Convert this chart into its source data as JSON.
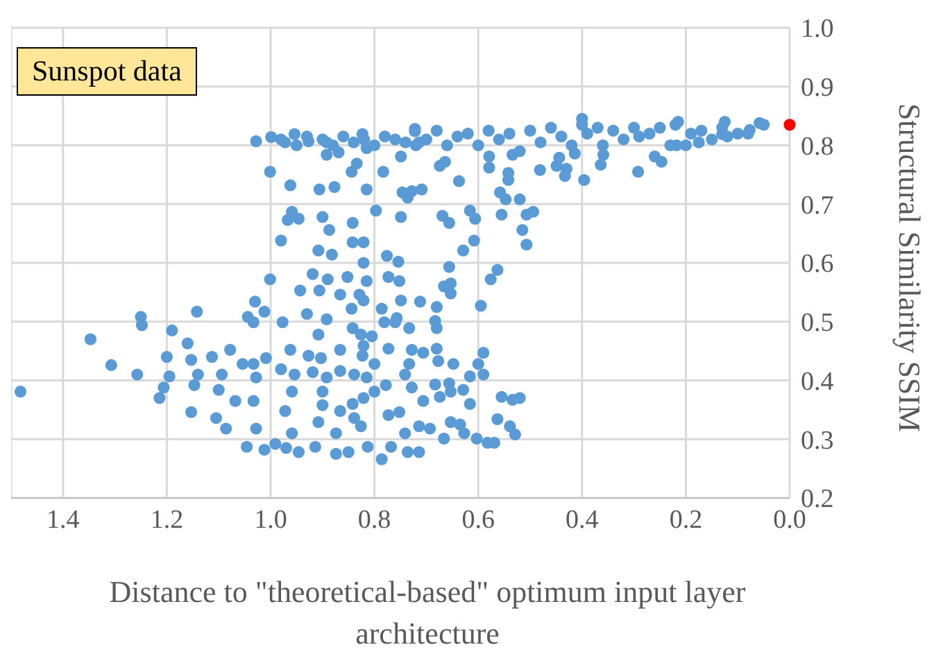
{
  "chart_data": {
    "type": "scatter",
    "xlabel": "Distance to \"theoretical-based\" optimum input layer architecture",
    "ylabel": "Structural Similarity SSIM",
    "annotations": [
      "Sunspot data"
    ],
    "xlim": [
      1.5,
      0
    ],
    "xticks": [
      1.4,
      1.2,
      {
        "value": 1,
        "label": "1.0"
      },
      0.8,
      0.6,
      0.4,
      0.2,
      {
        "value": 0,
        "label": "0.0"
      }
    ],
    "ylim": [
      0.2,
      1
    ],
    "yticks": [
      0.2,
      0.3,
      0.4,
      0.5,
      0.6,
      0.7,
      0.8,
      0.9,
      {
        "value": 1,
        "label": "1.0"
      }
    ],
    "grid": true,
    "marker": "circle",
    "series": [
      {
        "color": "#5b9bd5",
        "x": [
          1.482,
          1.347,
          1.307,
          1.257,
          1.25,
          1.248,
          1.2,
          1.214,
          1.19,
          1.195,
          1.206,
          1.142,
          1.16,
          1.153,
          1.14,
          1.147,
          1.153,
          1.105,
          1.086,
          1.113,
          1.078,
          1.094,
          1.1,
          1.068,
          1.054,
          1.046,
          1.044,
          1.033,
          1.03,
          1.012,
          1.033,
          1.028,
          1.033,
          1.028,
          1.012,
          1.009,
          1.001,
          1.001,
          1.028,
          0.999,
          0.98,
          0.977,
          0.962,
          0.98,
          0.972,
          0.97,
          0.991,
          0.959,
          0.954,
          0.946,
          0.959,
          0.962,
          0.967,
          0.959,
          0.946,
          0.972,
          0.954,
          0.927,
          0.943,
          0.93,
          0.927,
          0.919,
          0.908,
          0.906,
          0.919,
          0.908,
          0.9,
          0.906,
          0.877,
          0.887,
          0.882,
          0.89,
          0.892,
          0.903,
          0.892,
          0.9,
          0.9,
          0.908,
          0.914,
          0.892,
          0.892,
          0.869,
          0.866,
          0.866,
          0.866,
          0.866,
          0.874,
          0.874,
          0.852,
          0.844,
          0.842,
          0.842,
          0.842,
          0.844,
          0.834,
          0.839,
          0.842,
          0.839,
          0.85,
          0.821,
          0.821,
          0.815,
          0.829,
          0.821,
          0.826,
          0.821,
          0.823,
          0.815,
          0.821,
          0.826,
          0.813,
          0.815,
          0.815,
          0.823,
          0.805,
          0.8,
          0.8,
          0.797,
          0.786,
          0.783,
          0.776,
          0.773,
          0.781,
          0.773,
          0.778,
          0.773,
          0.786,
          0.768,
          0.754,
          0.752,
          0.749,
          0.757,
          0.76,
          0.749,
          0.746,
          0.736,
          0.749,
          0.752,
          0.741,
          0.733,
          0.728,
          0.733,
          0.728,
          0.741,
          0.736,
          0.722,
          0.714,
          0.728,
          0.709,
          0.669,
          0.656,
          0.712,
          0.68,
          0.683,
          0.68,
          0.706,
          0.68,
          0.677,
          0.648,
          0.616,
          0.6,
          0.59,
          0.59,
          0.656,
          0.683,
          0.653,
          0.629,
          0.706,
          0.674,
          0.616,
          0.555,
          0.534,
          0.52,
          0.714,
          0.693,
          0.653,
          0.635,
          0.666,
          0.627,
          0.603,
          0.582,
          0.569,
          0.563,
          0.539,
          0.529,
          0.714,
          0.666,
          0.653,
          0.653,
          0.595,
          0.656,
          0.576,
          0.563,
          0.629,
          0.608,
          0.616,
          0.606,
          0.555,
          0.547,
          0.558,
          0.542,
          0.542,
          0.52,
          0.507,
          0.494,
          0.515,
          0.507,
          0.637,
          0.674,
          0.664,
          0.579,
          0.481,
          0.449,
          0.43,
          0.433,
          0.396,
          0.444,
          0.364,
          0.359,
          0.292,
          0.26,
          0.247,
          0.414,
          0.534,
          0.579,
          0.7,
          0.68,
          0.66,
          0.64,
          0.62,
          0.6,
          0.58,
          0.56,
          0.54,
          0.52,
          0.5,
          0.48,
          0.46,
          0.44,
          0.42,
          0.4,
          0.39,
          0.37,
          0.36,
          0.34,
          0.32,
          0.3,
          0.29,
          0.27,
          0.25,
          0.23,
          0.22,
          0.2,
          0.19,
          0.17,
          0.15,
          0.13,
          0.12,
          0.1,
          0.08,
          0.05,
          0.125,
          0.058,
          0.215,
          0.13,
          0.077,
          0.175,
          0.218,
          0.4,
          0.722,
          0.98,
          0.95,
          0.93,
          0.9,
          0.88,
          0.86,
          0.84,
          0.82,
          0.8,
          0.78,
          0.76,
          0.74,
          0.72
        ],
        "values": [
          0.381,
          0.47,
          0.426,
          0.41,
          0.508,
          0.494,
          0.44,
          0.37,
          0.485,
          0.407,
          0.388,
          0.517,
          0.463,
          0.435,
          0.41,
          0.392,
          0.346,
          0.336,
          0.318,
          0.44,
          0.452,
          0.41,
          0.384,
          0.365,
          0.428,
          0.287,
          0.508,
          0.499,
          0.534,
          0.517,
          0.428,
          0.405,
          0.365,
          0.318,
          0.282,
          0.438,
          0.572,
          0.755,
          0.807,
          0.814,
          0.638,
          0.499,
          0.452,
          0.419,
          0.348,
          0.285,
          0.292,
          0.381,
          0.41,
          0.278,
          0.31,
          0.732,
          0.673,
          0.687,
          0.675,
          0.805,
          0.819,
          0.807,
          0.553,
          0.513,
          0.442,
          0.414,
          0.478,
          0.553,
          0.581,
          0.621,
          0.678,
          0.725,
          0.729,
          0.656,
          0.614,
          0.572,
          0.504,
          0.438,
          0.405,
          0.381,
          0.358,
          0.329,
          0.287,
          0.805,
          0.784,
          0.788,
          0.546,
          0.452,
          0.416,
          0.348,
          0.31,
          0.275,
          0.576,
          0.522,
          0.489,
          0.635,
          0.668,
          0.755,
          0.769,
          0.41,
          0.36,
          0.336,
          0.278,
          0.635,
          0.6,
          0.569,
          0.546,
          0.536,
          0.478,
          0.459,
          0.442,
          0.405,
          0.37,
          0.322,
          0.287,
          0.725,
          0.795,
          0.819,
          0.475,
          0.428,
          0.381,
          0.689,
          0.522,
          0.755,
          0.612,
          0.576,
          0.499,
          0.454,
          0.392,
          0.341,
          0.266,
          0.287,
          0.602,
          0.569,
          0.536,
          0.506,
          0.499,
          0.678,
          0.72,
          0.711,
          0.781,
          0.346,
          0.41,
          0.489,
          0.452,
          0.428,
          0.388,
          0.31,
          0.278,
          0.824,
          0.805,
          0.722,
          0.725,
          0.68,
          0.668,
          0.534,
          0.525,
          0.501,
          0.489,
          0.447,
          0.454,
          0.433,
          0.428,
          0.407,
          0.428,
          0.447,
          0.41,
          0.395,
          0.393,
          0.381,
          0.384,
          0.365,
          0.372,
          0.36,
          0.372,
          0.367,
          0.37,
          0.322,
          0.318,
          0.329,
          0.325,
          0.301,
          0.31,
          0.301,
          0.294,
          0.294,
          0.334,
          0.322,
          0.308,
          0.278,
          0.56,
          0.565,
          0.548,
          0.527,
          0.593,
          0.572,
          0.588,
          0.621,
          0.638,
          0.689,
          0.675,
          0.682,
          0.708,
          0.72,
          0.741,
          0.753,
          0.708,
          0.682,
          0.687,
          0.656,
          0.631,
          0.739,
          0.765,
          0.772,
          0.762,
          0.758,
          0.765,
          0.76,
          0.748,
          0.741,
          0.779,
          0.767,
          0.784,
          0.755,
          0.781,
          0.772,
          0.786,
          0.784,
          0.781,
          0.81,
          0.825,
          0.8,
          0.815,
          0.82,
          0.8,
          0.825,
          0.81,
          0.82,
          0.79,
          0.825,
          0.805,
          0.83,
          0.815,
          0.8,
          0.835,
          0.82,
          0.83,
          0.8,
          0.825,
          0.81,
          0.83,
          0.815,
          0.82,
          0.83,
          0.8,
          0.835,
          0.8,
          0.82,
          0.825,
          0.81,
          0.83,
          0.815,
          0.82,
          0.82,
          0.835,
          0.84,
          0.838,
          0.84,
          0.819,
          0.826,
          0.805,
          0.8,
          0.845,
          0.828,
          0.81,
          0.8,
          0.815,
          0.81,
          0.8,
          0.815,
          0.805,
          0.81,
          0.8,
          0.815,
          0.81,
          0.805,
          0.8
        ]
      },
      {
        "color": "#ff0000",
        "x": [
          0
        ],
        "values": [
          0.835
        ]
      }
    ]
  }
}
